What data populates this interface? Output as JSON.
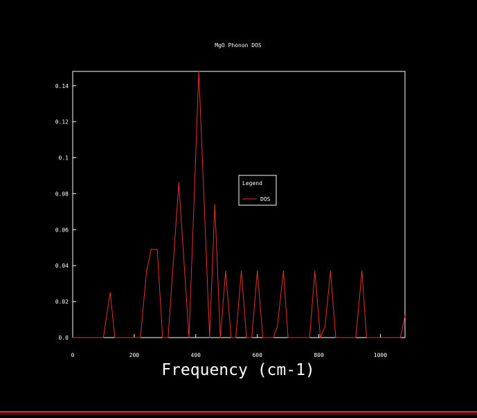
{
  "colors": {
    "background": "#000000",
    "axis": "#ffffff",
    "series": "#e8322c"
  },
  "chart_data": {
    "type": "line",
    "title": "MgO Phonon DOS",
    "xlabel": "Frequency (cm-1)",
    "ylabel": "",
    "xlim": [
      0,
      1080
    ],
    "ylim": [
      0,
      0.148
    ],
    "x_ticks": [
      0,
      200,
      400,
      600,
      800,
      1000
    ],
    "y_ticks": [
      0.0,
      0.02,
      0.04,
      0.06,
      0.08,
      0.1,
      0.12,
      0.14
    ],
    "x_tick_labels": [
      "0",
      "200",
      "400",
      "600",
      "800",
      "1000"
    ],
    "y_tick_labels": [
      "0.0",
      "0.02",
      "0.04",
      "0.06",
      "0.08",
      "0.1",
      "0.12",
      "0.14"
    ],
    "grid": false,
    "legend": {
      "title": "Legend",
      "placement": "center-right"
    },
    "series": [
      {
        "name": "DOS",
        "x": [
          0,
          100,
          122,
          137,
          220,
          240,
          255,
          275,
          292,
          310,
          345,
          378,
          410,
          445,
          462,
          480,
          497,
          515,
          530,
          548,
          565,
          582,
          600,
          618,
          635,
          652,
          665,
          685,
          700,
          770,
          787,
          805,
          820,
          838,
          855,
          920,
          940,
          955,
          1065,
          1080
        ],
        "y": [
          0,
          0,
          0.025,
          0,
          0,
          0.037,
          0.049,
          0.049,
          0,
          0,
          0.086,
          0,
          0.148,
          0,
          0.074,
          0,
          0.037,
          0,
          0,
          0.037,
          0,
          0,
          0.037,
          0,
          0,
          0,
          0.006,
          0.037,
          0,
          0,
          0.037,
          0,
          0.006,
          0.037,
          0,
          0,
          0.037,
          0,
          0,
          0.012
        ]
      }
    ]
  }
}
